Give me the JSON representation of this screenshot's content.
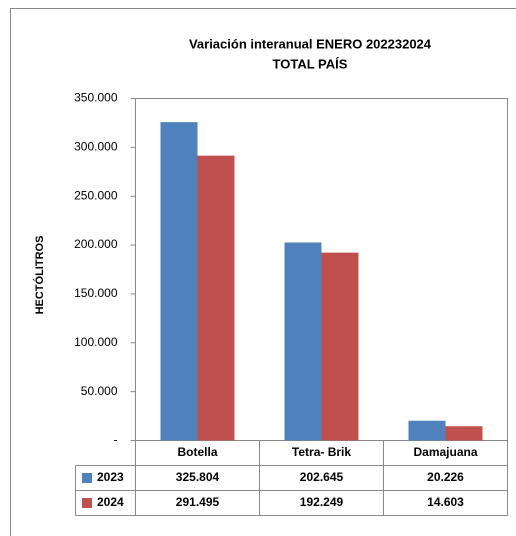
{
  "chart_data": {
    "type": "bar",
    "title": "Variación interanual  ENERO 202232024",
    "subtitle": "TOTAL PAÍS",
    "y_label": "HECTÓLITROS",
    "categories": [
      "Botella",
      "Tetra- Brik",
      "Damajuana"
    ],
    "series": [
      {
        "name": "2023",
        "color": "#4f81bd",
        "values": [
          325804,
          202645,
          20226
        ],
        "value_labels": [
          "325.804",
          "202.645",
          "20.226"
        ]
      },
      {
        "name": "2024",
        "color": "#c0504d",
        "values": [
          291495,
          192249,
          14603
        ],
        "value_labels": [
          "291.495",
          "192.249",
          "14.603"
        ]
      }
    ],
    "ylim": [
      0,
      350000
    ],
    "yticks": [
      {
        "value": 0,
        "label": "-"
      },
      {
        "value": 50000,
        "label": "50.000"
      },
      {
        "value": 100000,
        "label": "100.000"
      },
      {
        "value": 150000,
        "label": "150.000"
      },
      {
        "value": 200000,
        "label": "200.000"
      },
      {
        "value": 250000,
        "label": "250.000"
      },
      {
        "value": 300000,
        "label": "300.000"
      },
      {
        "value": 350000,
        "label": "350.000"
      }
    ],
    "grid": false
  }
}
